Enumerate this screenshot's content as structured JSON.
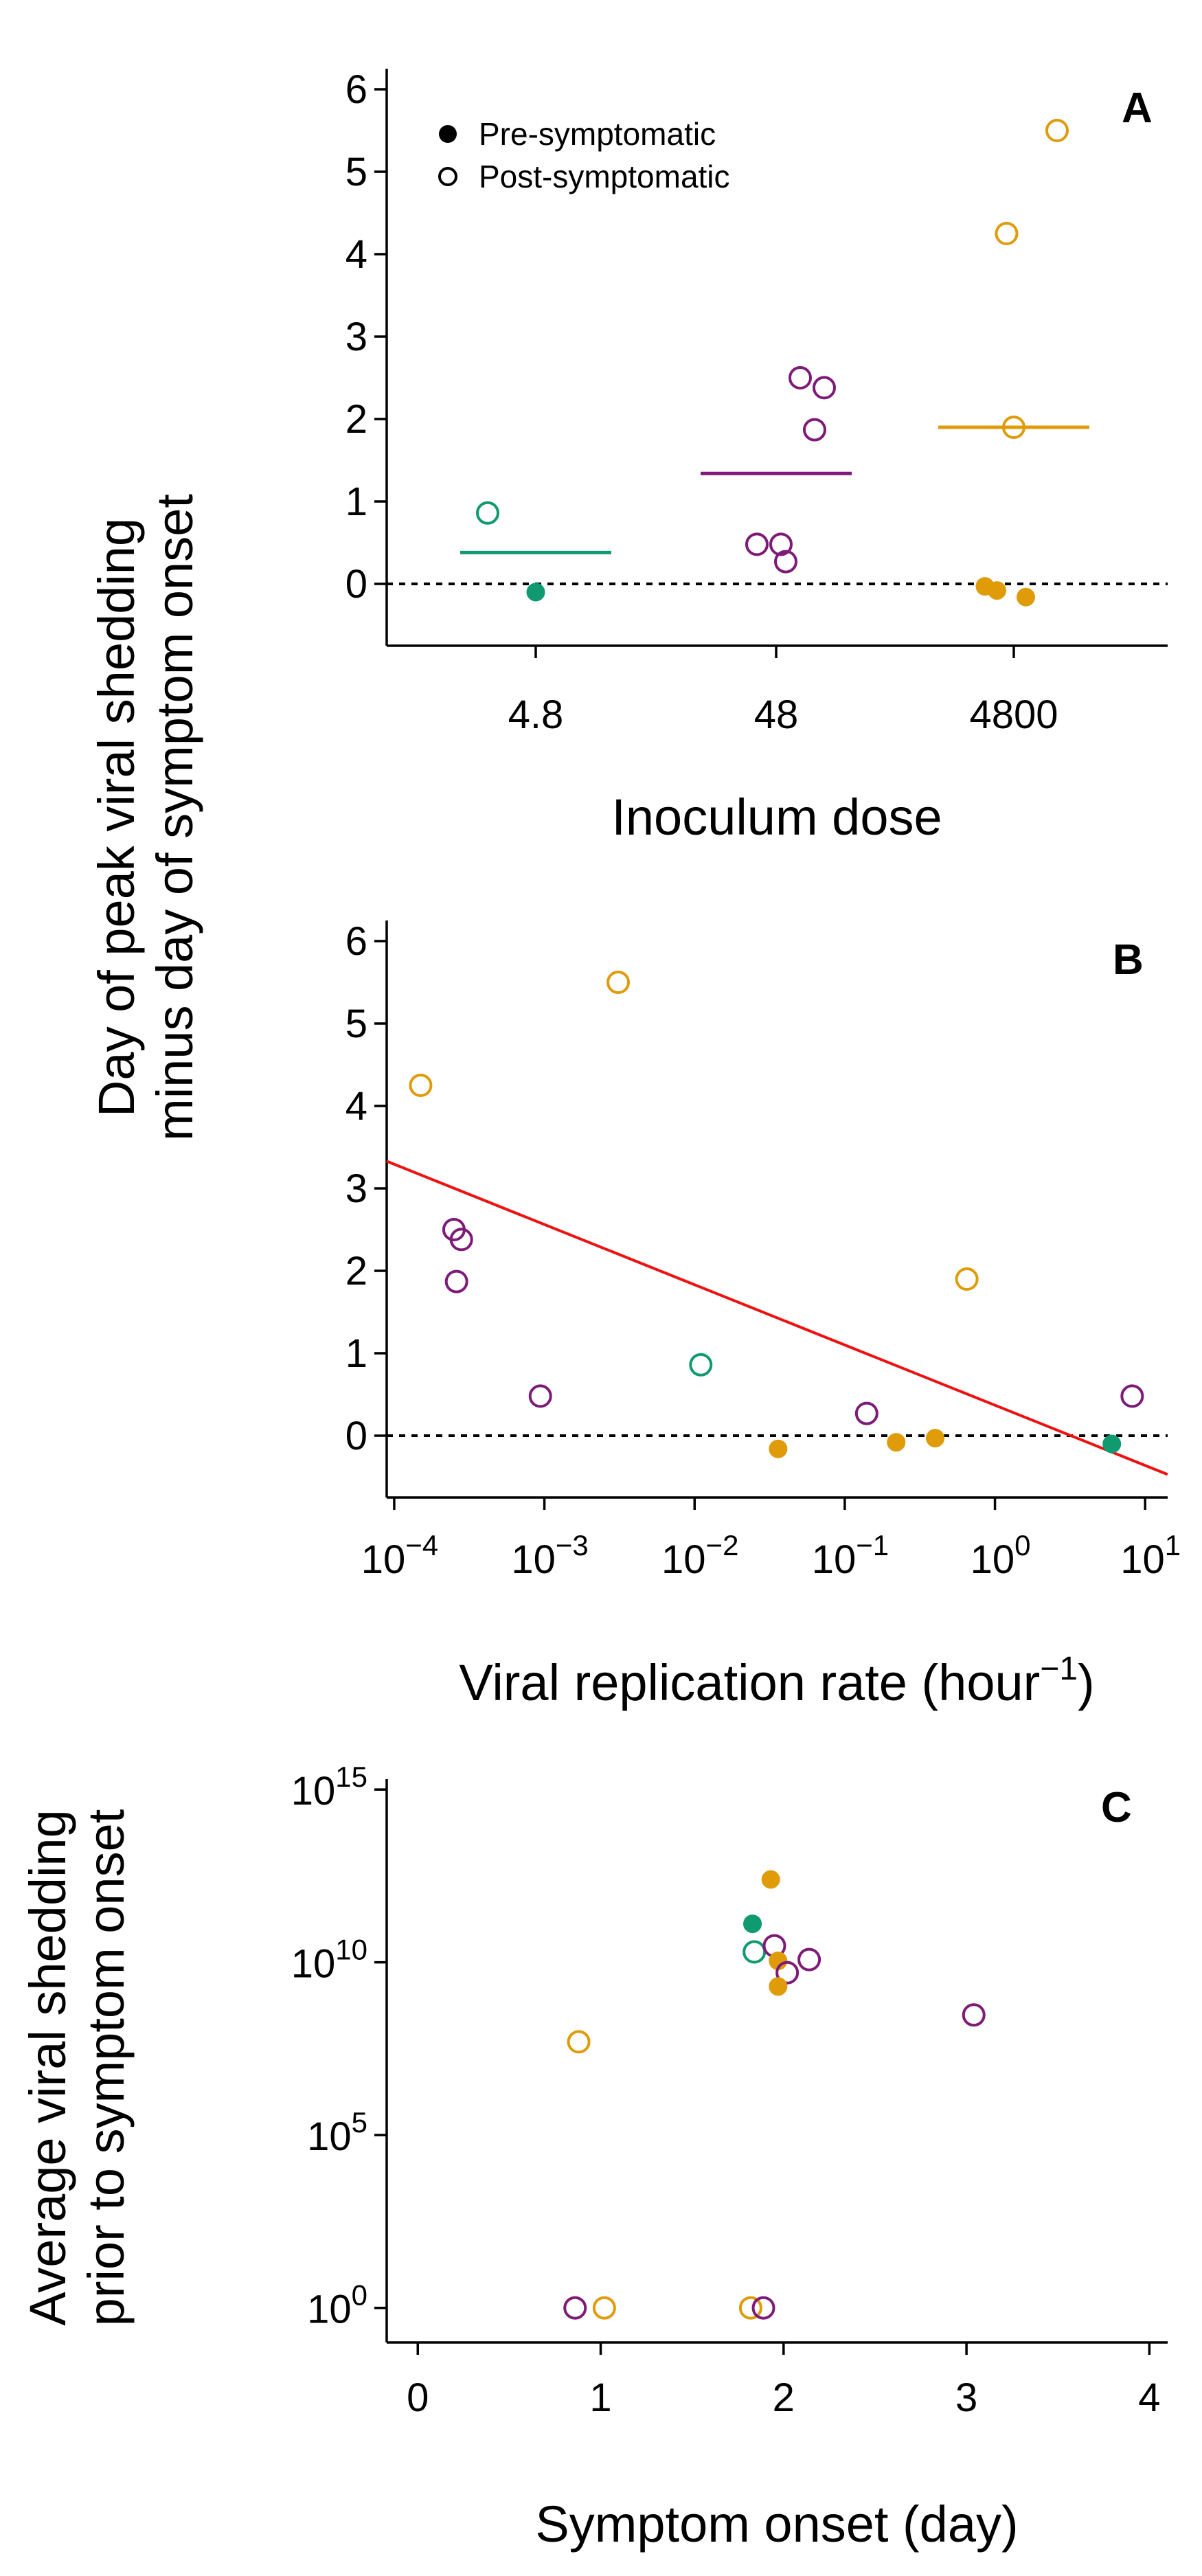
{
  "shared_ylabel": [
    "Day of peak viral shedding",
    "minus day of symptom onset"
  ],
  "colors": {
    "4.8": "#0f9a70",
    "48": "#7e1a77",
    "4800": "#e09b08",
    "fit": "#ee1111"
  },
  "chart_data": [
    {
      "panel": "A",
      "type": "scatter",
      "xlabel": "Inoculum dose",
      "categories": [
        "4.8",
        "48",
        "4800"
      ],
      "ylim": [
        -0.75,
        6.25
      ],
      "yticks": [
        "0",
        "1",
        "2",
        "3",
        "4",
        "5",
        "6"
      ],
      "legend": {
        "placement": "top-left",
        "entries": [
          {
            "label": "Pre-symptomatic",
            "filled": true
          },
          {
            "label": "Post-symptomatic",
            "filled": false
          }
        ]
      },
      "reference_line_y": 0,
      "medians": [
        {
          "dose": "4.8",
          "value": 0.38
        },
        {
          "dose": "48",
          "value": 1.34
        },
        {
          "dose": "4800",
          "value": 1.9
        }
      ],
      "points": [
        {
          "dose": "4.8",
          "jitter": -0.2,
          "y": 0.86,
          "filled": false
        },
        {
          "dose": "4.8",
          "jitter": 0.0,
          "y": -0.1,
          "filled": true
        },
        {
          "dose": "48",
          "jitter": -0.08,
          "y": 0.48,
          "filled": false
        },
        {
          "dose": "48",
          "jitter": 0.02,
          "y": 0.48,
          "filled": false
        },
        {
          "dose": "48",
          "jitter": 0.04,
          "y": 0.27,
          "filled": false
        },
        {
          "dose": "48",
          "jitter": 0.1,
          "y": 2.5,
          "filled": false
        },
        {
          "dose": "48",
          "jitter": 0.2,
          "y": 2.38,
          "filled": false
        },
        {
          "dose": "48",
          "jitter": 0.16,
          "y": 1.87,
          "filled": false
        },
        {
          "dose": "4800",
          "jitter": -0.03,
          "y": 4.25,
          "filled": false
        },
        {
          "dose": "4800",
          "jitter": 0.18,
          "y": 5.5,
          "filled": false
        },
        {
          "dose": "4800",
          "jitter": 0.0,
          "y": 1.9,
          "filled": false
        },
        {
          "dose": "4800",
          "jitter": -0.12,
          "y": -0.03,
          "filled": true
        },
        {
          "dose": "4800",
          "jitter": -0.07,
          "y": -0.08,
          "filled": true
        },
        {
          "dose": "4800",
          "jitter": 0.05,
          "y": -0.16,
          "filled": true
        }
      ]
    },
    {
      "panel": "B",
      "type": "scatter",
      "xlabel": "Viral replication rate (hour",
      "xlabel_superscript": "−1",
      "xlabel_close": ")",
      "x_scale": "log10",
      "xlim_log10": [
        -4.05,
        1.15
      ],
      "xticks": [
        {
          "base": "10",
          "exp": "−4",
          "log": -4
        },
        {
          "base": "10",
          "exp": "−3",
          "log": -3
        },
        {
          "base": "10",
          "exp": "−2",
          "log": -2
        },
        {
          "base": "10",
          "exp": "−1",
          "log": -1
        },
        {
          "base": "10",
          "exp": "0",
          "log": 0
        },
        {
          "base": "10",
          "exp": "1",
          "log": 1
        }
      ],
      "ylim": [
        -0.75,
        6.25
      ],
      "yticks": [
        "0",
        "1",
        "2",
        "3",
        "4",
        "5",
        "6"
      ],
      "reference_line_y": 0,
      "fit_line": {
        "x_start": 8.9e-05,
        "y_start": 3.33,
        "x_end": 14.1,
        "y_end": -0.47
      },
      "points": [
        {
          "x": 0.00015,
          "y": 4.25,
          "dose": "4800",
          "filled": false
        },
        {
          "x": 0.0031,
          "y": 5.5,
          "dose": "4800",
          "filled": false
        },
        {
          "x": 0.00025,
          "y": 2.5,
          "dose": "48",
          "filled": false
        },
        {
          "x": 0.00028,
          "y": 2.38,
          "dose": "48",
          "filled": false
        },
        {
          "x": 0.00026,
          "y": 1.87,
          "dose": "48",
          "filled": false
        },
        {
          "x": 0.00094,
          "y": 0.48,
          "dose": "48",
          "filled": false
        },
        {
          "x": 0.011,
          "y": 0.86,
          "dose": "4.8",
          "filled": false
        },
        {
          "x": 0.036,
          "y": -0.16,
          "dose": "4800",
          "filled": true
        },
        {
          "x": 0.14,
          "y": 0.27,
          "dose": "48",
          "filled": false
        },
        {
          "x": 0.22,
          "y": -0.08,
          "dose": "4800",
          "filled": true
        },
        {
          "x": 0.4,
          "y": -0.03,
          "dose": "4800",
          "filled": true
        },
        {
          "x": 0.65,
          "y": 1.9,
          "dose": "4800",
          "filled": false
        },
        {
          "x": 6.0,
          "y": -0.1,
          "dose": "4.8",
          "filled": true
        },
        {
          "x": 8.2,
          "y": 0.48,
          "dose": "48",
          "filled": false
        }
      ]
    },
    {
      "panel": "C",
      "type": "scatter",
      "ylabel": [
        "Average viral shedding",
        "prior to symptom onset"
      ],
      "xlabel": "Symptom onset (day)",
      "xlim": [
        -0.17,
        4.1
      ],
      "xticks": [
        "0",
        "1",
        "2",
        "3",
        "4"
      ],
      "y_scale": "log10",
      "ylim_log10": [
        -1.0,
        15.3
      ],
      "yticks": [
        {
          "base": "10",
          "exp": "15",
          "log": 15
        },
        {
          "base": "10",
          "exp": "10",
          "log": 10
        },
        {
          "base": "10",
          "exp": "5",
          "log": 5
        },
        {
          "base": "10",
          "exp": "0",
          "log": 0
        }
      ],
      "points": [
        {
          "x": 1.93,
          "y": 2500000000000.0,
          "dose": "4800",
          "filled": true
        },
        {
          "x": 1.83,
          "y": 130000000000.0,
          "dose": "4.8",
          "filled": true
        },
        {
          "x": 1.84,
          "y": 20000000000.0,
          "dose": "4.8",
          "filled": false
        },
        {
          "x": 1.95,
          "y": 30000000000.0,
          "dose": "48",
          "filled": false
        },
        {
          "x": 1.97,
          "y": 11000000000.0,
          "dose": "4800",
          "filled": true
        },
        {
          "x": 2.14,
          "y": 12000000000.0,
          "dose": "48",
          "filled": false
        },
        {
          "x": 2.02,
          "y": 5000000000.0,
          "dose": "48",
          "filled": false
        },
        {
          "x": 1.97,
          "y": 2000000000.0,
          "dose": "4800",
          "filled": true
        },
        {
          "x": 3.04,
          "y": 300000000.0,
          "dose": "48",
          "filled": false
        },
        {
          "x": 0.88,
          "y": 50000000.0,
          "dose": "4800",
          "filled": false
        },
        {
          "x": 0.86,
          "y": 1,
          "dose": "48",
          "filled": false
        },
        {
          "x": 1.02,
          "y": 1,
          "dose": "4800",
          "filled": false
        },
        {
          "x": 1.82,
          "y": 1,
          "dose": "4800",
          "filled": false
        },
        {
          "x": 1.89,
          "y": 1,
          "dose": "48",
          "filled": false
        }
      ]
    }
  ]
}
